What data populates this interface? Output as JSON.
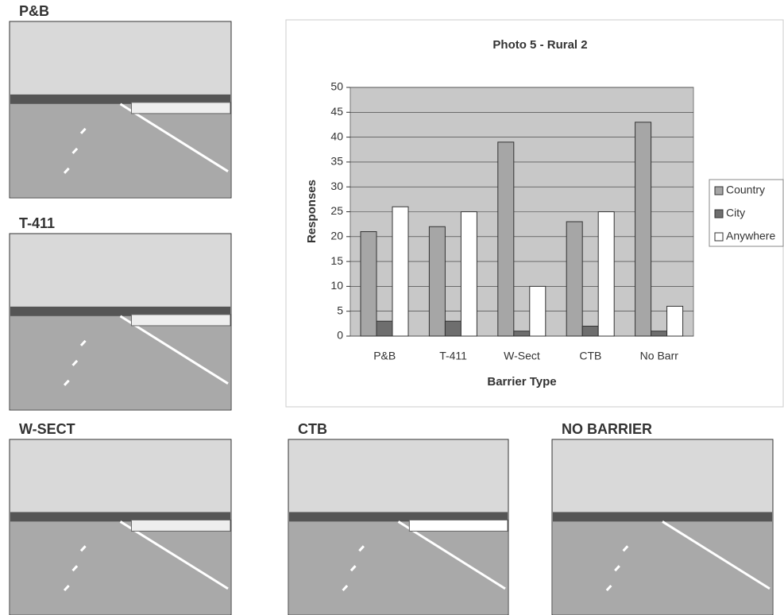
{
  "photos": [
    {
      "label": "P&B"
    },
    {
      "label": "T-411"
    },
    {
      "label": "W-SECT"
    },
    {
      "label": "CTB"
    },
    {
      "label": "NO BARRIER"
    }
  ],
  "chart_data": {
    "type": "bar",
    "title": "Photo 5 - Rural 2",
    "x_label": "Barrier Type",
    "y_label": "Responses",
    "categories": [
      "P&B",
      "T-411",
      "W-Sect",
      "CTB",
      "No Barr"
    ],
    "series": [
      {
        "name": "Country",
        "color": "#a6a6a6",
        "values": [
          21,
          22,
          39,
          23,
          43
        ]
      },
      {
        "name": "City",
        "color": "#6e6e6e",
        "values": [
          3,
          3,
          1,
          2,
          1
        ]
      },
      {
        "name": "Anywhere",
        "color": "#ffffff",
        "values": [
          26,
          25,
          10,
          25,
          6
        ]
      }
    ],
    "ylim": [
      0,
      50
    ],
    "yticks": [
      0,
      5,
      10,
      15,
      20,
      25,
      30,
      35,
      40,
      45,
      50
    ],
    "grid": true,
    "legend": "right"
  }
}
